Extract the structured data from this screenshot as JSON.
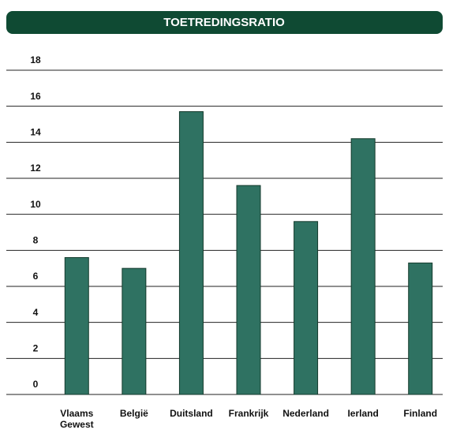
{
  "chart_data": {
    "type": "bar",
    "title": "TOETREDINGSRATIO",
    "categories": [
      "Vlaams Gewest",
      "België",
      "Duitsland",
      "Frankrijk",
      "Nederland",
      "Ierland",
      "Finland"
    ],
    "values": [
      7.6,
      7.0,
      15.7,
      11.6,
      9.6,
      14.2,
      7.3
    ],
    "color": "#2f7262",
    "ylim": [
      0,
      18
    ],
    "yticks": [
      0,
      2,
      4,
      6,
      8,
      10,
      12,
      14,
      16,
      18
    ],
    "grid": true
  }
}
